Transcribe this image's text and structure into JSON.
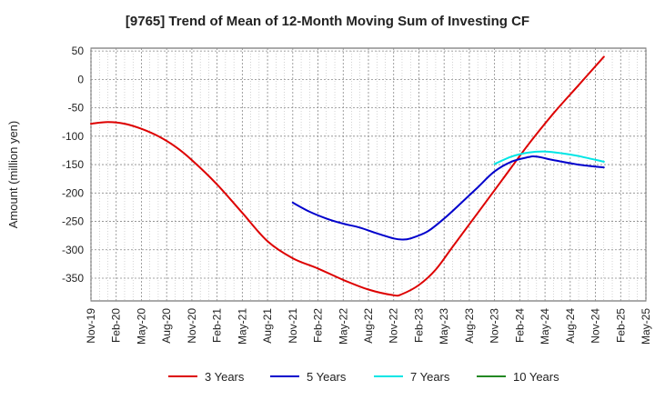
{
  "chart_data": {
    "type": "line",
    "title": "[9765]  Trend of Mean of 12-Month Moving Sum of Investing CF",
    "ylabel": "Amount (million yen)",
    "xlabel": "",
    "ylim": [
      -390,
      55
    ],
    "yticks": [
      50,
      0,
      -50,
      -100,
      -150,
      -200,
      -250,
      -300,
      -350
    ],
    "xticks": [
      "Nov-19",
      "Feb-20",
      "May-20",
      "Aug-20",
      "Nov-20",
      "Feb-21",
      "May-21",
      "Aug-21",
      "Nov-21",
      "Feb-22",
      "May-22",
      "Aug-22",
      "Nov-22",
      "Feb-23",
      "May-23",
      "Aug-23",
      "Nov-23",
      "Feb-24",
      "May-24",
      "Aug-24",
      "Nov-24",
      "Feb-25",
      "May-25"
    ],
    "x_range_months": [
      0,
      66
    ],
    "grid": true,
    "legend_position": "bottom",
    "series": [
      {
        "name": "3 Years",
        "color": "#dd0000",
        "points": [
          [
            0,
            -78
          ],
          [
            2,
            -75
          ],
          [
            4,
            -78
          ],
          [
            6,
            -87
          ],
          [
            8,
            -100
          ],
          [
            10,
            -118
          ],
          [
            12,
            -142
          ],
          [
            15,
            -185
          ],
          [
            18,
            -235
          ],
          [
            21,
            -285
          ],
          [
            24,
            -315
          ],
          [
            27,
            -333
          ],
          [
            30,
            -353
          ],
          [
            33,
            -370
          ],
          [
            36,
            -380
          ],
          [
            37,
            -378
          ],
          [
            39,
            -362
          ],
          [
            41,
            -335
          ],
          [
            43,
            -295
          ],
          [
            46,
            -235
          ],
          [
            49,
            -175
          ],
          [
            52,
            -115
          ],
          [
            55,
            -60
          ],
          [
            58,
            -10
          ],
          [
            61,
            40
          ]
        ]
      },
      {
        "name": "5 Years",
        "color": "#0000cc",
        "points": [
          [
            24,
            -217
          ],
          [
            26,
            -233
          ],
          [
            28,
            -245
          ],
          [
            30,
            -254
          ],
          [
            32,
            -261
          ],
          [
            34,
            -271
          ],
          [
            36,
            -280
          ],
          [
            37,
            -282
          ],
          [
            38,
            -280
          ],
          [
            40,
            -268
          ],
          [
            42,
            -245
          ],
          [
            44,
            -218
          ],
          [
            46,
            -190
          ],
          [
            48,
            -162
          ],
          [
            50,
            -145
          ],
          [
            52,
            -137
          ],
          [
            53,
            -136
          ],
          [
            55,
            -142
          ],
          [
            58,
            -150
          ],
          [
            61,
            -155
          ]
        ]
      },
      {
        "name": "7 Years",
        "color": "#00e5e5",
        "points": [
          [
            48,
            -149
          ],
          [
            50,
            -136
          ],
          [
            52,
            -129
          ],
          [
            54,
            -127
          ],
          [
            56,
            -130
          ],
          [
            58,
            -135
          ],
          [
            61,
            -145
          ]
        ]
      },
      {
        "name": "10 Years",
        "color": "#228822",
        "points": []
      }
    ]
  }
}
